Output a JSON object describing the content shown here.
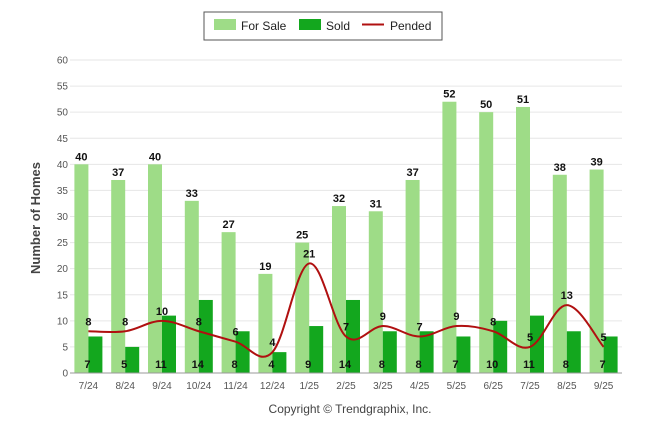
{
  "chart_data": {
    "type": "bar",
    "title": "",
    "xlabel": "",
    "ylabel": "Number of Homes",
    "ylim": [
      0,
      60
    ],
    "yticks": [
      0,
      5,
      10,
      15,
      20,
      25,
      30,
      35,
      40,
      45,
      50,
      55,
      60
    ],
    "grid": true,
    "legend_position": "top-center",
    "categories": [
      "7/24",
      "8/24",
      "9/24",
      "10/24",
      "11/24",
      "12/24",
      "1/25",
      "2/25",
      "3/25",
      "4/25",
      "5/25",
      "6/25",
      "7/25",
      "8/25",
      "9/25"
    ],
    "series": [
      {
        "name": "For Sale",
        "type": "bar",
        "color": "#9edc87",
        "values": [
          40,
          37,
          40,
          33,
          27,
          19,
          25,
          32,
          31,
          37,
          52,
          50,
          51,
          38,
          39
        ]
      },
      {
        "name": "Sold",
        "type": "bar",
        "color": "#13a71e",
        "values": [
          7,
          5,
          11,
          14,
          8,
          4,
          9,
          14,
          8,
          8,
          7,
          10,
          11,
          8,
          7
        ]
      },
      {
        "name": "Pended",
        "type": "line",
        "color": "#b01010",
        "values": [
          8,
          8,
          10,
          8,
          6,
          4,
          21,
          7,
          9,
          7,
          9,
          8,
          5,
          13,
          5
        ]
      }
    ]
  },
  "footer": {
    "copyright": "Copyright © Trendgraphix, Inc."
  }
}
